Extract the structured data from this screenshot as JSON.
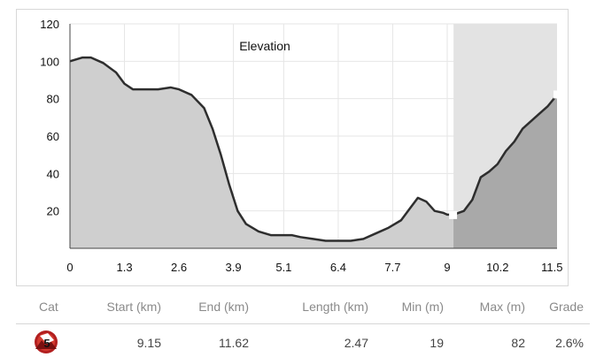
{
  "chart_data": {
    "type": "area",
    "title": "Elevation",
    "xlabel": "",
    "ylabel": "",
    "xlim": [
      0,
      11.62
    ],
    "ylim": [
      0,
      120
    ],
    "x_ticks": [
      "0",
      "1.3",
      "2.6",
      "3.9",
      "5.1",
      "6.4",
      "7.7",
      "9",
      "10.2",
      "11.5"
    ],
    "x_tick_values": [
      0,
      1.3,
      2.6,
      3.9,
      5.1,
      6.4,
      7.7,
      9.0,
      10.2,
      11.5
    ],
    "y_ticks": [
      "20",
      "40",
      "60",
      "80",
      "100",
      "120"
    ],
    "y_tick_values": [
      20,
      40,
      60,
      80,
      100,
      120
    ],
    "grid": true,
    "highlight_range": [
      9.15,
      11.62
    ],
    "colors": {
      "area": "#cfcfcf",
      "highlight_area": "#a9a9a9",
      "highlight_band": "#e3e3e3",
      "line": "#2e2e2e",
      "grid": "#e6e6e6"
    },
    "series": [
      {
        "x": [
          0,
          0.3,
          0.5,
          0.8,
          1.1,
          1.3,
          1.5,
          1.8,
          2.1,
          2.4,
          2.6,
          2.9,
          3.2,
          3.4,
          3.6,
          3.8,
          4.0,
          4.2,
          4.5,
          4.8,
          5.1,
          5.3,
          5.5,
          5.8,
          6.1,
          6.4,
          6.7,
          7.0,
          7.3,
          7.6,
          7.9,
          8.1,
          8.3,
          8.5,
          8.7,
          8.9,
          9.0,
          9.15,
          9.4,
          9.6,
          9.8,
          10.0,
          10.2,
          10.4,
          10.6,
          10.8,
          11.0,
          11.2,
          11.4,
          11.62
        ],
        "y": [
          100,
          102,
          102,
          99,
          94,
          88,
          85,
          85,
          85,
          86,
          85,
          82,
          75,
          64,
          50,
          34,
          20,
          13,
          9,
          7,
          7,
          7,
          6,
          5,
          4,
          4,
          4,
          5,
          8,
          11,
          15,
          21,
          27,
          25,
          20,
          19,
          18,
          18,
          20,
          26,
          38,
          41,
          45,
          52,
          57,
          64,
          68,
          72,
          76,
          82
        ]
      }
    ]
  },
  "table": {
    "headers": {
      "cat": "Cat",
      "start": "Start (km)",
      "end": "End (km)",
      "length": "Length (km)",
      "min": "Min (m)",
      "max": "Max (m)",
      "grade": "Grade"
    },
    "row": {
      "cat_icon": "category-5-climb-icon",
      "cat_number": "5",
      "start": "9.15",
      "end": "11.62",
      "length": "2.47",
      "min": "19",
      "max": "82",
      "grade": "2.6%"
    }
  }
}
